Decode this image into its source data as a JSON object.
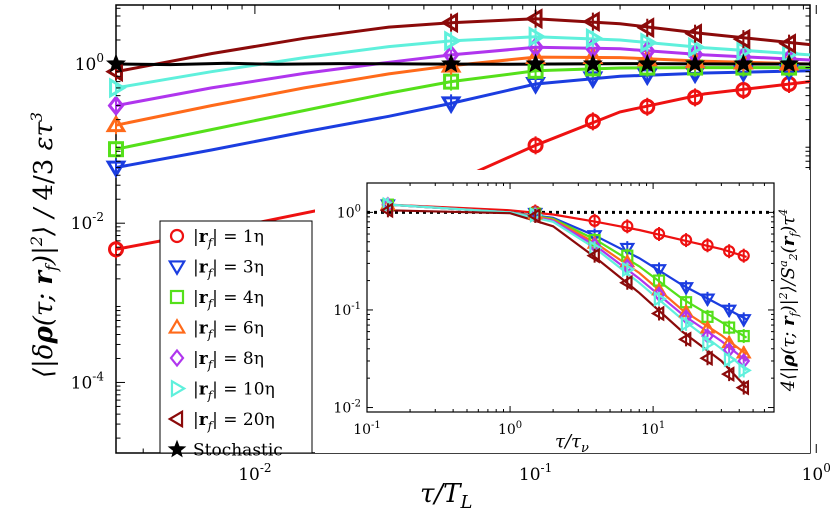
{
  "chart_data": [
    {
      "type": "line",
      "title": "",
      "xlabel": "τ/T_L",
      "ylabel": "⟨|δρ(τ; r_f)|²⟩ / (4/3) ε τ³",
      "xscale": "log",
      "yscale": "log",
      "xlim": [
        0.0032,
        0.95
      ],
      "ylim": [
        1.3e-05,
        5.5
      ],
      "x_ticks": [
        {
          "value": 0.01,
          "mantissa": "10",
          "exp": "-2"
        },
        {
          "value": 0.1,
          "mantissa": "10",
          "exp": "-1"
        },
        {
          "value": 1,
          "mantissa": "10",
          "exp": "0"
        }
      ],
      "y_ticks": [
        {
          "value": 0.0001,
          "mantissa": "10",
          "exp": "-4"
        },
        {
          "value": 0.01,
          "mantissa": "10",
          "exp": "-2"
        },
        {
          "value": 1,
          "mantissa": "10",
          "exp": "0"
        }
      ],
      "series": [
        {
          "name": "|r_f| = 1η",
          "label_main": "|r",
          "label_sub": "f",
          "label_rest": "| = 1η",
          "color": "#ee1111",
          "marker": "circle",
          "x": [
            0.0032,
            0.05,
            0.1,
            0.16,
            0.25,
            0.37,
            0.55,
            0.8
          ],
          "y": [
            0.0047,
            0.032,
            0.095,
            0.19,
            0.29,
            0.38,
            0.47,
            0.56
          ],
          "curve_x": [
            0.0032,
            0.01,
            0.03,
            0.05,
            0.1,
            0.2,
            0.4,
            0.95
          ],
          "curve_y": [
            0.0047,
            0.01,
            0.022,
            0.032,
            0.095,
            0.25,
            0.42,
            0.6
          ]
        },
        {
          "name": "|r_f| = 3η",
          "label_main": "|r",
          "label_sub": "f",
          "label_rest": "| = 3η",
          "color": "#1b3de0",
          "marker": "triangle-down",
          "x": [
            0.0032,
            0.05,
            0.1,
            0.16,
            0.25,
            0.37,
            0.55,
            0.8
          ],
          "y": [
            0.05,
            0.32,
            0.56,
            0.66,
            0.72,
            0.76,
            0.79,
            0.81
          ],
          "curve_x": [
            0.0032,
            0.007,
            0.015,
            0.03,
            0.05,
            0.1,
            0.2,
            0.4,
            0.95
          ],
          "curve_y": [
            0.05,
            0.083,
            0.14,
            0.22,
            0.32,
            0.56,
            0.7,
            0.77,
            0.82
          ]
        },
        {
          "name": "|r_f| = 4η",
          "label_main": "|r",
          "label_sub": "f",
          "label_rest": "| = 4η",
          "color": "#55e01a",
          "marker": "square",
          "x": [
            0.0032,
            0.05,
            0.1,
            0.16,
            0.25,
            0.37,
            0.55,
            0.8
          ],
          "y": [
            0.085,
            0.6,
            0.82,
            0.88,
            0.9,
            0.9,
            0.9,
            0.9
          ],
          "curve_x": [
            0.0032,
            0.007,
            0.015,
            0.03,
            0.05,
            0.1,
            0.2,
            0.4,
            0.95
          ],
          "curve_y": [
            0.085,
            0.15,
            0.26,
            0.43,
            0.6,
            0.82,
            0.89,
            0.9,
            0.9
          ]
        },
        {
          "name": "|r_f| = 6η",
          "label_main": "|r",
          "label_sub": "f",
          "label_rest": "| = 6η",
          "color": "#ff6a1a",
          "marker": "triangle-up",
          "x": [
            0.0032,
            0.05,
            0.1,
            0.16,
            0.25,
            0.37,
            0.55,
            0.8
          ],
          "y": [
            0.17,
            0.95,
            1.22,
            1.22,
            1.14,
            1.08,
            1.04,
            1.01
          ],
          "curve_x": [
            0.0032,
            0.007,
            0.015,
            0.03,
            0.05,
            0.1,
            0.2,
            0.4,
            0.95
          ],
          "curve_y": [
            0.17,
            0.3,
            0.5,
            0.75,
            0.95,
            1.22,
            1.2,
            1.08,
            1.0
          ]
        },
        {
          "name": "|r_f| = 8η",
          "label_main": "|r",
          "label_sub": "f",
          "label_rest": "| = 8η",
          "color": "#b035ee",
          "marker": "diamond",
          "x": [
            0.0032,
            0.05,
            0.1,
            0.16,
            0.25,
            0.37,
            0.55,
            0.8
          ],
          "y": [
            0.3,
            1.3,
            1.62,
            1.58,
            1.45,
            1.32,
            1.22,
            1.15
          ],
          "curve_x": [
            0.0032,
            0.007,
            0.015,
            0.03,
            0.05,
            0.1,
            0.2,
            0.4,
            0.95
          ],
          "curve_y": [
            0.3,
            0.5,
            0.76,
            1.05,
            1.3,
            1.62,
            1.55,
            1.3,
            1.12
          ]
        },
        {
          "name": "|r_f| = 10η",
          "label_main": "|r",
          "label_sub": "f",
          "label_rest": "| = 10η",
          "color": "#5ff0dc",
          "marker": "triangle-right",
          "x": [
            0.0032,
            0.05,
            0.1,
            0.16,
            0.25,
            0.37,
            0.55,
            0.8
          ],
          "y": [
            0.5,
            1.95,
            2.2,
            2.1,
            1.85,
            1.62,
            1.46,
            1.35
          ],
          "curve_x": [
            0.0032,
            0.007,
            0.015,
            0.03,
            0.05,
            0.1,
            0.2,
            0.4,
            0.95
          ],
          "curve_y": [
            0.5,
            0.8,
            1.2,
            1.65,
            1.95,
            2.2,
            2.0,
            1.6,
            1.3
          ]
        },
        {
          "name": "|r_f| = 20η",
          "label_main": "|r",
          "label_sub": "f",
          "label_rest": "| = 20η",
          "color": "#8b0a0a",
          "marker": "triangle-left",
          "x": [
            0.0032,
            0.05,
            0.1,
            0.16,
            0.25,
            0.37,
            0.55,
            0.8
          ],
          "y": [
            0.8,
            3.3,
            3.7,
            3.4,
            2.85,
            2.4,
            2.05,
            1.8
          ],
          "curve_x": [
            0.0032,
            0.007,
            0.015,
            0.03,
            0.05,
            0.1,
            0.2,
            0.4,
            0.95
          ],
          "curve_y": [
            0.8,
            1.35,
            2.1,
            2.9,
            3.3,
            3.7,
            3.2,
            2.4,
            1.75
          ]
        },
        {
          "name": "Stochastic",
          "label_main": "Stochastic",
          "label_sub": "",
          "label_rest": "",
          "color": "#000000",
          "marker": "star",
          "x": [
            0.0032,
            0.05,
            0.1,
            0.16,
            0.25,
            0.37,
            0.55,
            0.8
          ],
          "y": [
            1.0,
            1.0,
            1.0,
            1.0,
            1.0,
            1.0,
            1.0,
            1.0
          ],
          "curve_x": [
            0.0032,
            0.005,
            0.008,
            0.012,
            0.02,
            0.04,
            0.08,
            0.2,
            0.5,
            0.95
          ],
          "curve_y": [
            1.0,
            0.98,
            1.02,
            0.99,
            1.01,
            1.0,
            0.99,
            1.01,
            1.0,
            1.0
          ]
        }
      ],
      "legend": "lower-left"
    },
    {
      "type": "line",
      "title": "",
      "xlabel": "τ/τ_ν",
      "ylabel": "4⟨|ρ(τ; r_f)|²⟩ / S₂ᵃ(r_f) τ⁴",
      "xscale": "log",
      "yscale": "log",
      "xlim": [
        0.1,
        70
      ],
      "ylim": [
        0.009,
        2.0
      ],
      "x_ticks": [
        {
          "value": 0.1,
          "mantissa": "10",
          "exp": "-1"
        },
        {
          "value": 1,
          "mantissa": "10",
          "exp": "0"
        },
        {
          "value": 10,
          "mantissa": "10",
          "exp": "1"
        }
      ],
      "y_ticks": [
        {
          "value": 0.01,
          "mantissa": "10",
          "exp": "-2"
        },
        {
          "value": 0.1,
          "mantissa": "10",
          "exp": "-1"
        },
        {
          "value": 1,
          "mantissa": "10",
          "exp": "0"
        }
      ],
      "reference_line": {
        "y": 1.0,
        "style": "dotted"
      },
      "series": [
        {
          "name": "|r_f| = 1η",
          "color": "#ee1111",
          "marker": "circle",
          "x": [
            0.14,
            1.5,
            3.9,
            6.6,
            11,
            17,
            24,
            34,
            43
          ],
          "y": [
            1.2,
            1.02,
            0.82,
            0.72,
            0.6,
            0.52,
            0.46,
            0.4,
            0.36
          ],
          "curve_x": [
            0.14,
            1,
            2,
            4,
            8,
            16,
            30,
            45
          ],
          "curve_y": [
            1.2,
            1.05,
            0.95,
            0.8,
            0.66,
            0.52,
            0.42,
            0.35
          ]
        },
        {
          "name": "|r_f| = 3η",
          "color": "#1b3de0",
          "marker": "triangle-down",
          "x": [
            0.14,
            1.5,
            3.9,
            6.6,
            11,
            17,
            24,
            34,
            43
          ],
          "y": [
            1.2,
            0.98,
            0.58,
            0.43,
            0.26,
            0.17,
            0.13,
            0.1,
            0.08
          ],
          "curve_x": [
            0.14,
            1,
            2,
            4,
            8,
            16,
            30,
            45
          ],
          "curve_y": [
            1.2,
            1.0,
            0.88,
            0.57,
            0.34,
            0.18,
            0.11,
            0.08
          ]
        },
        {
          "name": "|r_f| = 4η",
          "color": "#55e01a",
          "marker": "square",
          "x": [
            0.14,
            1.5,
            3.9,
            6.6,
            11,
            17,
            24,
            34,
            43
          ],
          "y": [
            1.2,
            0.97,
            0.52,
            0.36,
            0.2,
            0.12,
            0.085,
            0.066,
            0.054
          ],
          "curve_x": [
            0.14,
            1,
            2,
            4,
            8,
            16,
            30,
            45
          ],
          "curve_y": [
            1.2,
            1.0,
            0.86,
            0.52,
            0.28,
            0.13,
            0.075,
            0.052
          ]
        },
        {
          "name": "|r_f| = 6η",
          "color": "#ff6a1a",
          "marker": "triangle-up",
          "x": [
            0.14,
            1.5,
            3.9,
            6.6,
            11,
            17,
            24,
            34,
            43
          ],
          "y": [
            1.2,
            0.96,
            0.48,
            0.31,
            0.16,
            0.095,
            0.065,
            0.046,
            0.036
          ],
          "curve_x": [
            0.14,
            1,
            2,
            4,
            8,
            16,
            30,
            45
          ],
          "curve_y": [
            1.2,
            1.0,
            0.84,
            0.48,
            0.24,
            0.1,
            0.055,
            0.035
          ]
        },
        {
          "name": "|r_f| = 8η",
          "color": "#b035ee",
          "marker": "diamond",
          "x": [
            0.14,
            1.5,
            3.9,
            6.6,
            11,
            17,
            24,
            34,
            43
          ],
          "y": [
            1.2,
            0.95,
            0.46,
            0.28,
            0.145,
            0.085,
            0.054,
            0.039,
            0.03
          ],
          "curve_x": [
            0.14,
            1,
            2,
            4,
            8,
            16,
            30,
            45
          ],
          "curve_y": [
            1.2,
            1.0,
            0.82,
            0.45,
            0.21,
            0.09,
            0.048,
            0.03
          ]
        },
        {
          "name": "|r_f| = 10η",
          "color": "#5ff0dc",
          "marker": "triangle-right",
          "x": [
            0.14,
            1.5,
            3.9,
            6.6,
            11,
            17,
            24,
            34,
            43
          ],
          "y": [
            1.2,
            0.94,
            0.43,
            0.26,
            0.13,
            0.072,
            0.045,
            0.031,
            0.024
          ],
          "curve_x": [
            0.14,
            1,
            2,
            4,
            8,
            16,
            30,
            45
          ],
          "curve_y": [
            1.2,
            1.0,
            0.8,
            0.42,
            0.19,
            0.08,
            0.04,
            0.024
          ]
        },
        {
          "name": "|r_f| = 20η",
          "color": "#8b0a0a",
          "marker": "triangle-left",
          "x": [
            0.14,
            1.5,
            3.9,
            6.6,
            11,
            17,
            24,
            34,
            43
          ],
          "y": [
            1.05,
            0.92,
            0.36,
            0.19,
            0.092,
            0.05,
            0.032,
            0.022,
            0.016
          ],
          "curve_x": [
            0.14,
            1,
            2,
            4,
            8,
            16,
            30,
            45
          ],
          "curve_y": [
            1.05,
            0.98,
            0.72,
            0.34,
            0.15,
            0.06,
            0.03,
            0.016
          ]
        }
      ]
    }
  ]
}
